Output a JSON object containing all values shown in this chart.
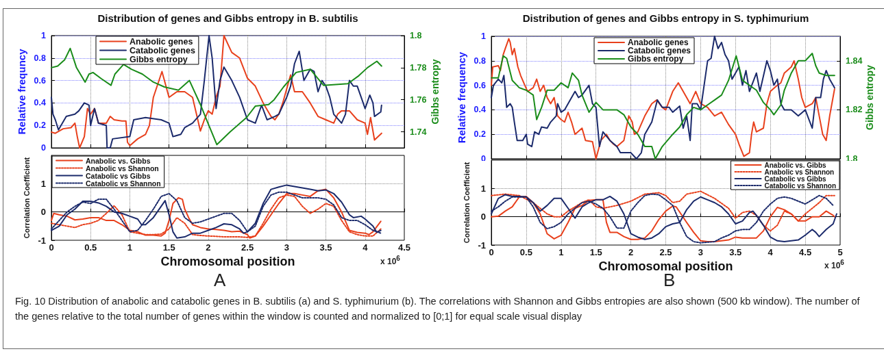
{
  "chart_data": [
    {
      "type": "line",
      "title": "Distribution of genes and Gibbs entropy in B. subtilis",
      "ylabel": "Relative frequncy",
      "y2label": "Gibbs entropy",
      "xlim": [
        0,
        4.5
      ],
      "xticks": [
        0,
        0.5,
        1,
        1.5,
        2,
        2.5,
        3,
        3.5,
        4,
        4.5
      ],
      "ylim": [
        0,
        1
      ],
      "yticks": [
        0,
        0.2,
        0.4,
        0.6,
        0.8,
        1
      ],
      "y2lim": [
        1.73,
        1.8
      ],
      "y2ticks": [
        1.74,
        1.76,
        1.78,
        1.8
      ],
      "tick_labels": "y",
      "grid": true,
      "legend": "top left",
      "series": [
        {
          "name": "Anabolic genes",
          "color": "#e8401c",
          "x": [
            0,
            0.05,
            0.15,
            0.25,
            0.3,
            0.33,
            0.36,
            0.42,
            0.46,
            0.5,
            0.55,
            0.6,
            0.7,
            0.75,
            0.8,
            0.9,
            0.95,
            0.97,
            1.0,
            1.1,
            1.2,
            1.25,
            1.3,
            1.41,
            1.5,
            1.6,
            1.7,
            1.8,
            1.85,
            1.9,
            1.95,
            2.0,
            2.05,
            2.1,
            2.15,
            2.2,
            2.3,
            2.4,
            2.5,
            2.6,
            2.7,
            2.8,
            2.85,
            2.9,
            2.95,
            3.05,
            3.1,
            3.2,
            3.3,
            3.4,
            3.5,
            3.6,
            3.65,
            3.7,
            3.8,
            3.9,
            4.0,
            4.03,
            4.07,
            4.12,
            4.21
          ],
          "values": [
            0.14,
            0.13,
            0.17,
            0.18,
            0.22,
            0.1,
            0,
            0.1,
            0.35,
            0.3,
            0.35,
            0.22,
            0.22,
            0.28,
            0.25,
            0.24,
            0.24,
            0.05,
            0.02,
            0.08,
            0.12,
            0.2,
            0.45,
            0.68,
            0.45,
            0.5,
            0.5,
            0.45,
            0.3,
            0.15,
            0.25,
            0.33,
            0.3,
            0.45,
            0.55,
            1,
            0.85,
            0.8,
            0.62,
            0.55,
            0.4,
            0.28,
            0.25,
            0.3,
            0.4,
            0.65,
            0.5,
            0.5,
            0.4,
            0.28,
            0.25,
            0.22,
            0.3,
            0.33,
            0.33,
            0.25,
            0.22,
            0.12,
            0.27,
            0.07,
            0.13
          ]
        },
        {
          "name": "Catabolic genes",
          "color": "#1b2a6b",
          "x": [
            0,
            0.02,
            0.05,
            0.09,
            0.19,
            0.3,
            0.35,
            0.42,
            0.48,
            0.5,
            0.55,
            0.6,
            0.7,
            0.71,
            0.75,
            0.78,
            1.0,
            1.05,
            1.2,
            1.4,
            1.5,
            1.55,
            1.65,
            1.7,
            1.8,
            1.9,
            1.95,
            2.01,
            2.05,
            2.1,
            2.15,
            2.2,
            2.3,
            2.4,
            2.5,
            2.6,
            2.68,
            2.75,
            2.85,
            2.9,
            3.0,
            3.05,
            3.1,
            3.16,
            3.22,
            3.3,
            3.35,
            3.4,
            3.45,
            3.5,
            3.55,
            3.6,
            3.7,
            3.75,
            3.8,
            3.85,
            3.9,
            3.95,
            4.0,
            4.06,
            4.1,
            4.12,
            4.2,
            4.21
          ],
          "values": [
            0.45,
            0.3,
            0.25,
            0.16,
            0.28,
            0.3,
            0.33,
            0.4,
            0.38,
            0.2,
            0.35,
            0.22,
            0.2,
            0,
            0,
            0.08,
            0.1,
            0.25,
            0.27,
            0.25,
            0.22,
            0.1,
            0.12,
            0.18,
            0.22,
            0.3,
            0.6,
            1,
            0.8,
            0.35,
            0.6,
            0.72,
            0.6,
            0.45,
            0.25,
            0.22,
            0.38,
            0.25,
            0.28,
            0.3,
            0.45,
            0.55,
            0.75,
            0.86,
            0.6,
            0.7,
            0.68,
            0.5,
            0.6,
            0.55,
            0.45,
            0.3,
            0.22,
            0.3,
            0.6,
            0.55,
            0.55,
            0.45,
            0.35,
            0.47,
            0.4,
            0.28,
            0.32,
            0.38
          ]
        },
        {
          "name": "Gibbs entropy",
          "color": "#1a8c1a",
          "axis": "y2",
          "x": [
            0,
            0.08,
            0.17,
            0.24,
            0.32,
            0.43,
            0.48,
            0.53,
            0.64,
            0.76,
            0.81,
            0.92,
            1.02,
            1.16,
            1.3,
            1.44,
            1.62,
            1.76,
            1.9,
            2.0,
            2.11,
            2.28,
            2.49,
            2.6,
            2.77,
            2.84,
            2.96,
            3.12,
            3.3,
            3.47,
            3.78,
            3.92,
            4.03,
            4.15,
            4.21
          ],
          "values": [
            1.78,
            1.781,
            1.785,
            1.792,
            1.78,
            1.771,
            1.776,
            1.777,
            1.773,
            1.769,
            1.776,
            1.782,
            1.779,
            1.776,
            1.771,
            1.768,
            1.766,
            1.772,
            1.757,
            1.745,
            1.732,
            1.74,
            1.749,
            1.756,
            1.757,
            1.76,
            1.768,
            1.777,
            1.779,
            1.769,
            1.77,
            1.775,
            1.78,
            1.784,
            1.781
          ]
        }
      ]
    },
    {
      "type": "line",
      "xlabel": "Chromosomal position",
      "ylabel": "Correlation Coefficient",
      "xlim": [
        0,
        4.5
      ],
      "xticks": [
        0,
        0.5,
        1,
        1.5,
        2,
        2.5,
        3,
        3.5,
        4,
        4.5
      ],
      "ylim": [
        -1,
        2
      ],
      "yticks": [
        -1,
        0,
        1
      ],
      "grid": true,
      "legend": "top left",
      "annotations": [
        "x 10$^{6}$",
        "A"
      ],
      "series": [
        {
          "name": "Anabolic vs. Gibbs",
          "color": "#e8401c",
          "line_style": "solid",
          "x": [
            0,
            0.03,
            0.1,
            0.2,
            0.3,
            0.4,
            0.5,
            0.6,
            0.7,
            0.8,
            0.9,
            1.0,
            1.1,
            1.2,
            1.3,
            1.4,
            1.45,
            1.5,
            1.55,
            1.62,
            1.67,
            1.7,
            1.75,
            1.8,
            1.9,
            2.0,
            2.1,
            2.2,
            2.3,
            2.4,
            2.5,
            2.53,
            2.6,
            2.7,
            2.8,
            2.9,
            3.0,
            3.1,
            3.2,
            3.3,
            3.4,
            3.5,
            3.6,
            3.7,
            3.8,
            3.9,
            4.0,
            4.05,
            4.1,
            4.2
          ],
          "values": [
            -0.3,
            -0.05,
            -0.1,
            -0.15,
            -0.28,
            -0.25,
            -0.2,
            -0.2,
            -0.3,
            -0.3,
            -0.45,
            -0.65,
            -0.7,
            -0.82,
            -0.82,
            -0.85,
            -0.75,
            -0.3,
            0.3,
            0.5,
            0.45,
            0.1,
            -0.2,
            -0.45,
            -0.55,
            -0.6,
            -0.62,
            -0.65,
            -0.7,
            -0.68,
            -0.8,
            -0.92,
            -0.85,
            -0.5,
            -0.1,
            0.3,
            0.65,
            0.65,
            0.6,
            0.55,
            0.75,
            0.8,
            0.5,
            0,
            -0.65,
            -0.72,
            -0.75,
            -0.8,
            -0.7,
            -0.33
          ]
        },
        {
          "name": "Anabolic vs Shannon",
          "color": "#e8401c",
          "line_style": "dotted",
          "x": [
            0,
            0.1,
            0.2,
            0.3,
            0.4,
            0.5,
            0.6,
            0.7,
            0.8,
            0.9,
            1.0,
            1.1,
            1.2,
            1.3,
            1.4,
            1.5,
            1.6,
            1.7,
            1.8,
            1.9,
            2.0,
            2.1,
            2.2,
            2.3,
            2.4,
            2.5,
            2.6,
            2.7,
            2.8,
            2.9,
            3.0,
            3.1,
            3.2,
            3.3,
            3.4,
            3.5,
            3.6,
            3.7,
            3.8,
            3.9,
            4.0,
            4.1,
            4.2
          ],
          "values": [
            -0.4,
            -0.45,
            -0.5,
            -0.55,
            -0.45,
            -0.4,
            -0.3,
            -0.05,
            0.22,
            -0.1,
            -0.7,
            -0.75,
            -0.8,
            -0.8,
            -0.78,
            -0.6,
            -0.2,
            -0.4,
            -0.8,
            -0.83,
            -0.85,
            -0.86,
            -0.88,
            -0.88,
            -0.88,
            -0.9,
            -0.85,
            -0.4,
            0.1,
            0.5,
            0.6,
            0.55,
            0.2,
            -0.05,
            0.1,
            0.3,
            0.2,
            -0.3,
            -0.7,
            -0.8,
            -0.85,
            -0.85,
            -0.6
          ]
        },
        {
          "name": "Catabolic vs Gibbs",
          "color": "#1b2a6b",
          "line_style": "solid",
          "x": [
            0,
            0.1,
            0.2,
            0.3,
            0.4,
            0.5,
            0.6,
            0.7,
            0.8,
            0.9,
            1.0,
            1.1,
            1.15,
            1.2,
            1.3,
            1.4,
            1.45,
            1.5,
            1.55,
            1.6,
            1.7,
            1.8,
            1.9,
            2.0,
            2.1,
            2.2,
            2.3,
            2.4,
            2.45,
            2.5,
            2.6,
            2.7,
            2.8,
            2.9,
            3.0,
            3.1,
            3.2,
            3.3,
            3.4,
            3.5,
            3.6,
            3.7,
            3.8,
            3.85,
            3.95,
            4.0,
            4.1,
            4.15,
            4.2
          ],
          "values": [
            -0.65,
            -0.5,
            -0.1,
            0.1,
            0.38,
            0.38,
            0.32,
            0.2,
            0,
            -0.05,
            -0.15,
            -0.25,
            -0.45,
            -0.45,
            -0.2,
            0.2,
            0.4,
            -0.1,
            -0.7,
            -0.92,
            -0.88,
            -0.75,
            -0.75,
            -0.65,
            -0.55,
            -0.42,
            -0.45,
            -0.6,
            -0.75,
            -0.7,
            -0.4,
            0.3,
            0.8,
            0.88,
            0.95,
            0.9,
            0.85,
            0.8,
            0.75,
            0.78,
            0.65,
            0.35,
            -0.1,
            -0.2,
            -0.15,
            -0.25,
            -0.5,
            -0.72,
            -0.65
          ]
        },
        {
          "name": "Catabolic vs Shannon",
          "color": "#1b2a6b",
          "line_style": "dotted",
          "x": [
            0,
            0.1,
            0.2,
            0.3,
            0.4,
            0.5,
            0.6,
            0.7,
            0.8,
            0.9,
            1.0,
            1.1,
            1.2,
            1.3,
            1.4,
            1.5,
            1.6,
            1.7,
            1.8,
            1.9,
            2.0,
            2.1,
            2.2,
            2.3,
            2.4,
            2.5,
            2.6,
            2.7,
            2.8,
            2.9,
            3.0,
            3.1,
            3.2,
            3.3,
            3.4,
            3.5,
            3.6,
            3.7,
            3.8,
            3.9,
            4.0,
            4.1,
            4.2
          ],
          "values": [
            -0.6,
            -0.3,
            0,
            0.2,
            0.35,
            0.3,
            0.45,
            0.45,
            0.1,
            -0.3,
            -0.7,
            -0.65,
            -0.3,
            0.1,
            0.55,
            0.65,
            0.4,
            -0.2,
            -0.4,
            -0.35,
            -0.25,
            -0.15,
            -0.05,
            -0.05,
            -0.3,
            -0.7,
            -0.5,
            0.2,
            0.6,
            0.7,
            0.7,
            0.6,
            0.5,
            0.5,
            0.5,
            0.45,
            0.25,
            -0.2,
            -0.3,
            -0.3,
            -0.45,
            -0.65,
            -0.75
          ]
        }
      ]
    },
    {
      "type": "line",
      "title": "Distribution of genes and Gibbs entropy in S. typhimurium",
      "ylabel": "Relative frequency",
      "y2label": "Gibbs entropy",
      "xlim": [
        0,
        5
      ],
      "xticks": [
        0,
        0.5,
        1,
        1.5,
        2,
        2.5,
        3,
        3.5,
        4,
        4.5,
        5
      ],
      "ylim": [
        0,
        1
      ],
      "yticks": [
        0,
        0.2,
        0.4,
        0.6,
        0.8,
        1
      ],
      "y2lim": [
        1.8,
        1.85
      ],
      "y2ticks": [
        1.8,
        1.82,
        1.84
      ],
      "tick_labels": "y",
      "grid": true,
      "legend": "top",
      "series": [
        {
          "name": "Anabolic genes",
          "color": "#e8401c",
          "x": [
            0,
            0.02,
            0.1,
            0.13,
            0.17,
            0.2,
            0.25,
            0.27,
            0.3,
            0.33,
            0.38,
            0.42,
            0.48,
            0.52,
            0.6,
            0.65,
            0.7,
            0.75,
            0.8,
            0.85,
            0.9,
            0.95,
            1.0,
            1.05,
            1.1,
            1.15,
            1.2,
            1.3,
            1.35,
            1.45,
            1.5,
            1.57,
            1.65,
            1.7,
            1.75,
            1.8,
            1.9,
            1.97,
            2.02,
            2.05,
            2.1,
            2.2,
            2.3,
            2.37,
            2.45,
            2.5,
            2.6,
            2.68,
            2.75,
            2.85,
            2.93,
            3.0,
            3.1,
            3.2,
            3.3,
            3.4,
            3.5,
            3.55,
            3.62,
            3.7,
            3.73,
            3.76,
            3.8,
            3.9,
            3.95,
            4.0,
            4.1,
            4.15,
            4.2,
            4.3,
            4.34,
            4.4,
            4.45,
            4.5,
            4.6,
            4.65,
            4.7,
            4.75,
            4.8,
            4.85,
            4.92
          ],
          "values": [
            0.6,
            0.75,
            0.76,
            0.72,
            0.85,
            0.9,
            0.98,
            0.95,
            0.85,
            0.9,
            0.75,
            0.68,
            0.6,
            0.55,
            0.58,
            0.65,
            0.55,
            0.6,
            0.5,
            0.45,
            0.5,
            0.35,
            0.32,
            0.3,
            0.38,
            0.3,
            0.2,
            0.25,
            0.15,
            0.14,
            0,
            0.15,
            0.2,
            0.15,
            0.12,
            0.1,
            0.15,
            0.35,
            0.3,
            0.2,
            0.22,
            0.35,
            0.45,
            0.48,
            0.42,
            0.4,
            0.55,
            0.62,
            0.55,
            0.45,
            0.55,
            0.45,
            0.42,
            0.35,
            0.38,
            0.28,
            0.2,
            0.12,
            0.02,
            0.05,
            0.2,
            0.3,
            0.22,
            0.25,
            0.45,
            0.55,
            0.6,
            0.62,
            0.7,
            0.75,
            0.8,
            0.65,
            0.5,
            0.42,
            0.45,
            0.5,
            0.35,
            0.2,
            0.15,
            0.35,
            0.57
          ]
        },
        {
          "name": "Catabolic genes",
          "color": "#1b2a6b",
          "x": [
            0,
            0.03,
            0.1,
            0.15,
            0.18,
            0.22,
            0.27,
            0.3,
            0.33,
            0.37,
            0.45,
            0.5,
            0.52,
            0.58,
            0.62,
            0.68,
            0.72,
            0.8,
            0.85,
            0.93,
            0.95,
            1.0,
            1.05,
            1.1,
            1.2,
            1.25,
            1.3,
            1.4,
            1.45,
            1.5,
            1.55,
            1.6,
            1.7,
            1.8,
            1.85,
            2.0,
            2.08,
            2.15,
            2.2,
            2.3,
            2.38,
            2.45,
            2.55,
            2.6,
            2.7,
            2.75,
            2.8,
            2.85,
            2.88,
            2.95,
            3.0,
            3.05,
            3.1,
            3.15,
            3.2,
            3.25,
            3.3,
            3.35,
            3.4,
            3.45,
            3.5,
            3.55,
            3.6,
            3.65,
            3.7,
            3.8,
            3.85,
            3.95,
            4.0,
            4.05,
            4.1,
            4.15,
            4.2,
            4.3,
            4.4,
            4.5,
            4.6,
            4.65,
            4.72,
            4.76,
            4.8,
            4.85,
            4.92
          ],
          "values": [
            0.5,
            0.6,
            0.65,
            0.62,
            0.68,
            0.42,
            0.45,
            0.42,
            0.3,
            0.15,
            0.15,
            0.2,
            0.12,
            0.1,
            0.22,
            0.2,
            0.26,
            0.25,
            0.3,
            0.35,
            0.45,
            0.38,
            0.4,
            0.45,
            0.55,
            0.5,
            0.52,
            0.6,
            0.45,
            0.42,
            0.1,
            0.22,
            0.15,
            0.1,
            0.05,
            0.05,
            0,
            0.05,
            0.2,
            0.3,
            0.48,
            0.42,
            0.42,
            0.38,
            0.43,
            0.25,
            0.35,
            0.15,
            0.45,
            0.45,
            0.4,
            0.6,
            0.8,
            0.82,
            1,
            0.9,
            0.95,
            0.85,
            0.8,
            0.65,
            0.7,
            0.75,
            0.6,
            0.72,
            0.55,
            0.7,
            0.55,
            0.8,
            0.72,
            0.6,
            0.65,
            0.45,
            0.4,
            0.4,
            0.35,
            0.4,
            0.25,
            0.5,
            0.5,
            0.65,
            0.72,
            0.65,
            0.58
          ]
        },
        {
          "name": "Gibbs entropy",
          "color": "#1a8c1a",
          "axis": "y2",
          "x": [
            0,
            0.1,
            0.17,
            0.22,
            0.3,
            0.4,
            0.5,
            0.6,
            0.65,
            0.72,
            0.8,
            0.9,
            1.0,
            1.1,
            1.16,
            1.25,
            1.3,
            1.4,
            1.5,
            1.6,
            1.8,
            1.9,
            2.0,
            2.1,
            2.2,
            2.3,
            2.35,
            2.45,
            2.6,
            2.7,
            2.8,
            2.9,
            3.0,
            3.1,
            3.2,
            3.3,
            3.4,
            3.51,
            3.6,
            3.7,
            3.8,
            3.9,
            4.0,
            4.05,
            4.15,
            4.2,
            4.3,
            4.4,
            4.5,
            4.6,
            4.65,
            4.7,
            4.8,
            4.92
          ],
          "values": [
            1.833,
            1.833,
            1.842,
            1.841,
            1.832,
            1.829,
            1.828,
            1.826,
            1.816,
            1.821,
            1.828,
            1.828,
            1.831,
            1.829,
            1.835,
            1.832,
            1.826,
            1.819,
            1.823,
            1.82,
            1.82,
            1.818,
            1.813,
            1.81,
            1.805,
            1.805,
            1.8,
            1.805,
            1.81,
            1.813,
            1.818,
            1.821,
            1.82,
            1.822,
            1.824,
            1.826,
            1.832,
            1.842,
            1.832,
            1.83,
            1.828,
            1.823,
            1.82,
            1.818,
            1.822,
            1.828,
            1.835,
            1.84,
            1.84,
            1.843,
            1.838,
            1.835,
            1.834,
            1.834
          ]
        }
      ]
    },
    {
      "type": "line",
      "xlabel": "Chromosomal position",
      "ylabel": "Correlation Coefficient",
      "xlim": [
        0,
        5
      ],
      "xticks": [
        0,
        0.5,
        1,
        1.5,
        2,
        2.5,
        3,
        3.5,
        4,
        4.5,
        5
      ],
      "ylim": [
        -1,
        2
      ],
      "yticks": [
        -1,
        0,
        1
      ],
      "grid": true,
      "legend": "top right",
      "annotations": [
        "x 10$^{6}$",
        "B",
        "Fig. 10 Distribution of anabolic and catabolic genes in B. subtilis (a) and S. typhimurium (b). The correlations with Shannon and Gibbs entropies are also shown (500 kb window). The number of the genes relative to the total number of genes within the window is counted and normalized to [0;1] for equal scale visual display"
      ],
      "series": [
        {
          "name": "Anabolic vs. Gibbs",
          "color": "#e8401c",
          "line_style": "solid",
          "x": [
            0,
            0.1,
            0.2,
            0.3,
            0.4,
            0.5,
            0.6,
            0.7,
            0.8,
            0.9,
            1.0,
            1.1,
            1.2,
            1.3,
            1.4,
            1.5,
            1.6,
            1.65,
            1.7,
            1.8,
            1.9,
            2.0,
            2.1,
            2.2,
            2.3,
            2.4,
            2.5,
            2.6,
            2.65,
            2.8,
            2.9,
            3.0,
            3.1,
            3.2,
            3.3,
            3.4,
            3.5,
            3.6,
            3.7,
            3.8,
            3.9,
            4.0,
            4.1,
            4.2,
            4.3,
            4.4,
            4.5,
            4.6,
            4.7,
            4.8,
            4.9,
            4.92
          ],
          "values": [
            0,
            0.02,
            0.2,
            0.35,
            0.7,
            0.72,
            0.5,
            0.1,
            -0.6,
            -0.78,
            -0.65,
            -0.2,
            0.3,
            0.4,
            0.58,
            0.6,
            0.6,
            -0.2,
            -0.55,
            -0.55,
            -0.7,
            -0.8,
            -0.8,
            -0.75,
            -0.5,
            -0.1,
            0.2,
            0.38,
            0.35,
            -0.2,
            -0.55,
            -0.85,
            -0.88,
            -0.88,
            -0.85,
            -0.82,
            -0.72,
            -0.75,
            -0.75,
            -0.75,
            -0.5,
            0,
            0.33,
            0.25,
            0.1,
            -0.15,
            -0.15,
            0,
            0,
            0.2,
            0.05,
            0
          ]
        },
        {
          "name": "Anabolic vs Shannon",
          "color": "#e8401c",
          "line_style": "dotted",
          "x": [
            0,
            0.2,
            0.4,
            0.6,
            0.7,
            0.8,
            0.9,
            1.0,
            1.1,
            1.3,
            1.4,
            1.5,
            1.6,
            1.8,
            2.0,
            2.2,
            2.4,
            2.5,
            2.6,
            2.7,
            2.8,
            3.0,
            3.2,
            3.4,
            3.5,
            3.6,
            3.7,
            3.8,
            3.9,
            4.0,
            4.1,
            4.2,
            4.3,
            4.4,
            4.5,
            4.7,
            4.8,
            4.92
          ],
          "values": [
            0.75,
            0.8,
            0.75,
            0.5,
            0.3,
            0.1,
            0,
            0,
            0.2,
            0.5,
            0.6,
            0.35,
            0.3,
            0.4,
            0.55,
            0.8,
            0.85,
            0.75,
            0.5,
            0.55,
            0.8,
            0.9,
            0.65,
            0.3,
            -0.05,
            0.15,
            0.2,
            0.05,
            -0.3,
            -0.5,
            -0.3,
            0.2,
            0.1,
            -0.15,
            0.1,
            0.5,
            0.75,
            0.75
          ]
        },
        {
          "name": "Catabolic vs Gibbs",
          "color": "#1b2a6b",
          "line_style": "solid",
          "x": [
            0,
            0.1,
            0.2,
            0.3,
            0.4,
            0.5,
            0.6,
            0.7,
            0.8,
            0.9,
            1.0,
            1.1,
            1.2,
            1.3,
            1.4,
            1.5,
            1.6,
            1.7,
            1.8,
            1.9,
            2.0,
            2.1,
            2.2,
            2.3,
            2.4,
            2.5,
            2.6,
            2.7,
            2.8,
            2.9,
            3.0,
            3.1,
            3.2,
            3.3,
            3.4,
            3.5,
            3.6,
            3.7,
            3.75,
            3.8,
            3.9,
            4.0,
            4.1,
            4.2,
            4.3,
            4.4,
            4.5,
            4.6,
            4.65,
            4.7,
            4.8,
            4.9,
            4.95
          ],
          "values": [
            0.1,
            0.65,
            0.78,
            0.72,
            0.72,
            0.7,
            0.5,
            0.2,
            0.4,
            0.65,
            0.65,
            0.3,
            -0.05,
            0.35,
            0.5,
            0.6,
            0.6,
            0.72,
            0.55,
            0.1,
            -0.6,
            -0.72,
            -0.8,
            -0.75,
            -0.6,
            -0.35,
            -0.25,
            -0.2,
            0.25,
            0.55,
            0.7,
            0.6,
            0.5,
            0.35,
            0.1,
            -0.25,
            -0.15,
            0.15,
            0.2,
            0.05,
            -0.3,
            -0.72,
            -0.85,
            -0.88,
            -0.85,
            -0.82,
            -0.65,
            -0.45,
            -0.55,
            -0.7,
            -0.45,
            -0.25,
            0.1
          ]
        },
        {
          "name": "Catabolic vs Shannon",
          "color": "#1b2a6b",
          "line_style": "dotted",
          "x": [
            0,
            0.1,
            0.2,
            0.3,
            0.4,
            0.5,
            0.6,
            0.7,
            0.8,
            0.9,
            1.0,
            1.1,
            1.2,
            1.3,
            1.4,
            1.5,
            1.6,
            1.7,
            1.8,
            1.9,
            2.0,
            2.1,
            2.2,
            2.3,
            2.4,
            2.5,
            2.6,
            2.7,
            2.8,
            2.9,
            3.0,
            3.1,
            3.2,
            3.3,
            3.4,
            3.5,
            3.6,
            3.7,
            3.8,
            3.9,
            4.0,
            4.1,
            4.2,
            4.3,
            4.4,
            4.5,
            4.6,
            4.7,
            4.8,
            4.9
          ],
          "values": [
            0.2,
            0.35,
            0.55,
            0.7,
            0.7,
            0.7,
            0.35,
            -0.2,
            -0.42,
            -0.35,
            -0.2,
            0.1,
            0.3,
            0.5,
            0.55,
            0.45,
            0.3,
            0,
            -0.4,
            -0.4,
            0.2,
            0.5,
            0.75,
            0.8,
            0.78,
            0.6,
            0.4,
            -0.2,
            -0.7,
            -0.88,
            -0.92,
            -0.9,
            -0.88,
            -0.75,
            -0.65,
            -0.5,
            -0.45,
            -0.45,
            -0.2,
            0.2,
            0.45,
            0.65,
            0.7,
            0.65,
            0.55,
            0.45,
            0.6,
            0.75,
            0.65,
            0.4
          ]
        }
      ]
    }
  ]
}
